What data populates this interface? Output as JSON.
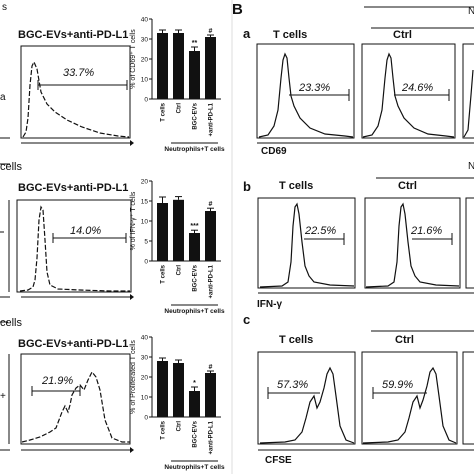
{
  "panel_letter_B": "B",
  "left": {
    "partial_label_top": "s",
    "row_labels": [
      "cells",
      "cells"
    ],
    "histogram_title": "BGC-EVs+anti-PD-L1",
    "fragment_marks": [
      "a",
      "+"
    ],
    "percents": [
      "33.7%",
      "14.0%",
      "21.9%"
    ]
  },
  "bar_group_caption": "Neutrophils+T cells",
  "bar_charts": [
    {
      "ylabel": "% of CD69⁺ T cells",
      "categories": [
        "T cells",
        "Ctrl",
        "BGC-EVs",
        "+anti-PD-L1"
      ],
      "values": [
        33,
        33,
        24,
        31
      ],
      "errors": [
        1.5,
        1.5,
        2,
        1
      ],
      "sig": [
        "",
        "",
        "**",
        "#"
      ],
      "yticks": [
        "0",
        "10",
        "20",
        "30",
        "40"
      ],
      "ylim": [
        0,
        40
      ]
    },
    {
      "ylabel": "% of IFN-γ⁺ T cells",
      "categories": [
        "T cells",
        "Ctrl",
        "BGC-EVs",
        "+anti-PD-L1"
      ],
      "values": [
        14.5,
        15.3,
        7,
        12.5
      ],
      "errors": [
        1.5,
        0.8,
        0.7,
        0.7
      ],
      "sig": [
        "",
        "",
        "***",
        "#"
      ],
      "yticks": [
        "0",
        "5",
        "10",
        "15",
        "20"
      ],
      "ylim": [
        0,
        20
      ]
    },
    {
      "ylabel": "% of Proliferated T cells",
      "categories": [
        "T cells",
        "Ctrl",
        "BGC-EVs",
        "+anti-PD-L1"
      ],
      "values": [
        28,
        27,
        13,
        22
      ],
      "errors": [
        1.5,
        1.5,
        2,
        1
      ],
      "sig": [
        "",
        "",
        "*",
        "#"
      ],
      "yticks": [
        "0",
        "10",
        "20",
        "30",
        "40"
      ],
      "ylim": [
        0,
        40
      ]
    }
  ],
  "right": {
    "rows": [
      {
        "letter": "a",
        "marker": "CD69",
        "col_titles": [
          "T cells",
          "Ctrl"
        ],
        "percents": [
          "23.3%",
          "24.6%"
        ]
      },
      {
        "letter": "b",
        "marker": "IFN-γ",
        "col_titles": [
          "T cells",
          "Ctrl"
        ],
        "percents": [
          "22.5%",
          "21.6%"
        ]
      },
      {
        "letter": "c",
        "marker": "CFSE",
        "col_titles": [
          "T cells",
          "Ctrl"
        ],
        "percents": [
          "57.3%",
          "59.9%"
        ]
      }
    ],
    "edge_marks": [
      "N",
      "N"
    ]
  }
}
